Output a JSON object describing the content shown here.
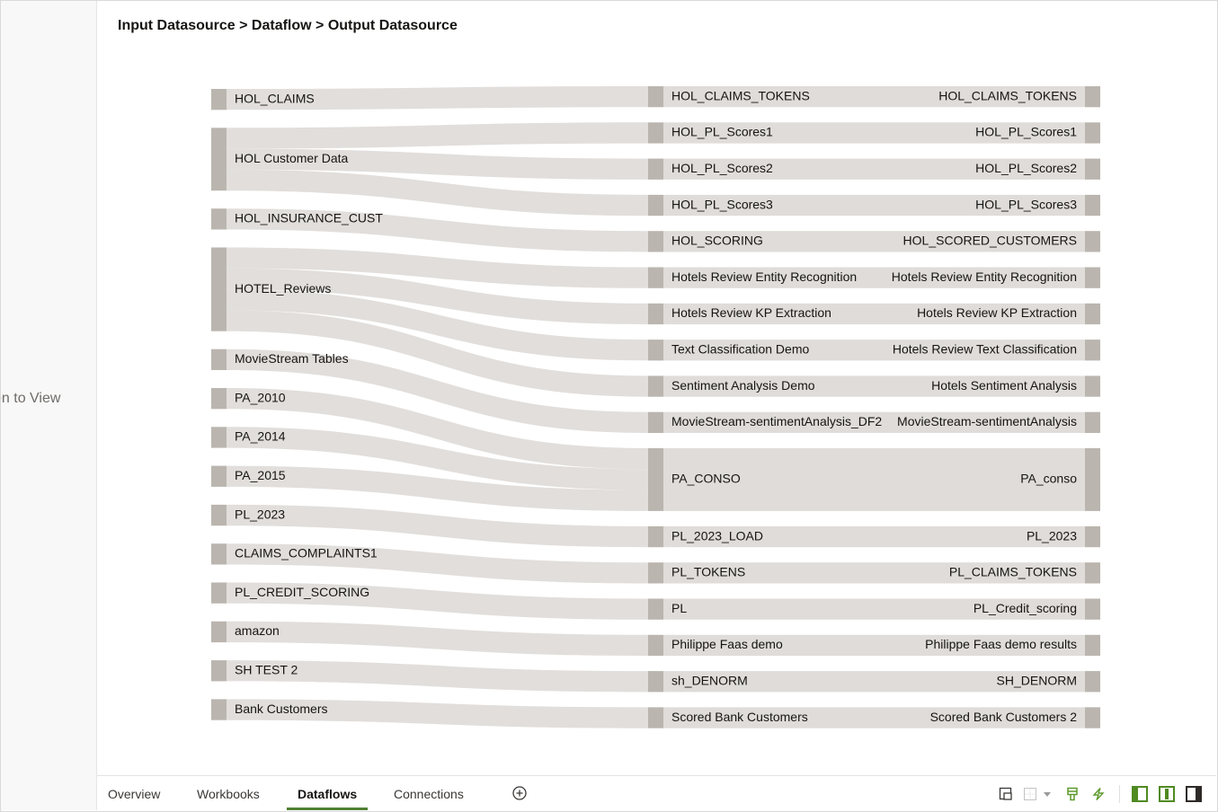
{
  "left_panel": {
    "clipped_text": "on to View"
  },
  "breadcrumb": "Input Datasource > Dataflow > Output Datasource",
  "colors": {
    "flow": "#dfdcd9",
    "node": "#bab5ae",
    "accent": "#4f8133"
  },
  "chart_data": {
    "type": "sankey",
    "sources": [
      "HOL_CLAIMS",
      "HOL Customer Data",
      "HOL_INSURANCE_CUST",
      "HOTEL_Reviews",
      "MovieStream Tables",
      "PA_2010",
      "PA_2014",
      "PA_2015",
      "PL_2023",
      "CLAIMS_COMPLAINTS1",
      "PL_CREDIT_SCORING",
      "amazon",
      "SH TEST 2",
      "Bank Customers"
    ],
    "dataflows": [
      "HOL_CLAIMS_TOKENS",
      "HOL_PL_Scores1",
      "HOL_PL_Scores2",
      "HOL_PL_Scores3",
      "HOL_SCORING",
      "Hotels Review Entity Recognition",
      "Hotels Review KP Extraction",
      "Text Classification Demo",
      "Sentiment Analysis Demo",
      "MovieStream-sentimentAnalysis_DF2",
      "PA_CONSO",
      "PL_2023_LOAD",
      "PL_TOKENS",
      "PL",
      "Philippe Faas demo",
      "sh_DENORM",
      "Scored Bank Customers"
    ],
    "outputs": [
      "HOL_CLAIMS_TOKENS",
      "HOL_PL_Scores1",
      "HOL_PL_Scores2",
      "HOL_PL_Scores3",
      "HOL_SCORED_CUSTOMERS",
      "Hotels Review Entity Recognition",
      "Hotels Review KP Extraction",
      "Hotels Review Text Classification",
      "Hotels Sentiment Analysis",
      "MovieStream-sentimentAnalysis",
      "PA_conso",
      "PL_2023",
      "PL_CLAIMS_TOKENS",
      "PL_Credit_scoring",
      "Philippe Faas demo results",
      "SH_DENORM",
      "Scored Bank Customers 2"
    ],
    "links": [
      [
        0,
        0,
        1
      ],
      [
        1,
        1,
        1
      ],
      [
        1,
        2,
        1
      ],
      [
        1,
        3,
        1
      ],
      [
        2,
        4,
        1
      ],
      [
        3,
        5,
        1
      ],
      [
        3,
        6,
        1
      ],
      [
        3,
        7,
        1
      ],
      [
        3,
        8,
        1
      ],
      [
        4,
        9,
        1
      ],
      [
        5,
        10,
        1
      ],
      [
        6,
        10,
        1
      ],
      [
        7,
        10,
        1
      ],
      [
        8,
        11,
        1
      ],
      [
        9,
        12,
        1
      ],
      [
        10,
        13,
        1
      ],
      [
        11,
        14,
        1
      ],
      [
        12,
        15,
        1
      ],
      [
        13,
        16,
        1
      ]
    ]
  },
  "tabs": [
    {
      "label": "Overview"
    },
    {
      "label": "Workbooks"
    },
    {
      "label": "Dataflows",
      "active": true
    },
    {
      "label": "Connections"
    }
  ],
  "toolbar_icons": [
    "add-tab-icon",
    "canvas-properties-icon",
    "grid-layout-icon",
    "brush-icon",
    "lightning-icon",
    "left-panel-icon",
    "center-panel-icon",
    "right-panel-icon"
  ]
}
